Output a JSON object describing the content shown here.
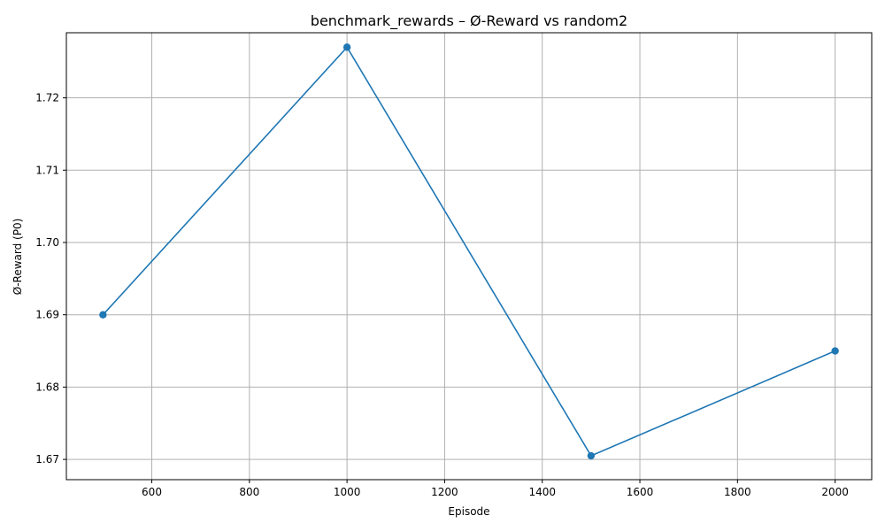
{
  "chart_data": {
    "type": "line",
    "title": "benchmark_rewards – Ø-Reward vs random2",
    "xlabel": "Episode",
    "ylabel": "Ø-Reward (P0)",
    "x": [
      500,
      1000,
      1500,
      2000
    ],
    "series": [
      {
        "values": [
          1.69,
          1.727,
          1.6705,
          1.685
        ],
        "color": "#1f77b4"
      }
    ],
    "xlim": [
      425,
      2075
    ],
    "ylim": [
      1.6672,
      1.729
    ],
    "xticks": [
      600,
      800,
      1000,
      1200,
      1400,
      1600,
      1800,
      2000
    ],
    "yticks": [
      1.67,
      1.68,
      1.69,
      1.7,
      1.71,
      1.72
    ],
    "ytick_labels": [
      "1.67",
      "1.68",
      "1.69",
      "1.70",
      "1.71",
      "1.72"
    ],
    "grid": true,
    "marker": "circle"
  }
}
